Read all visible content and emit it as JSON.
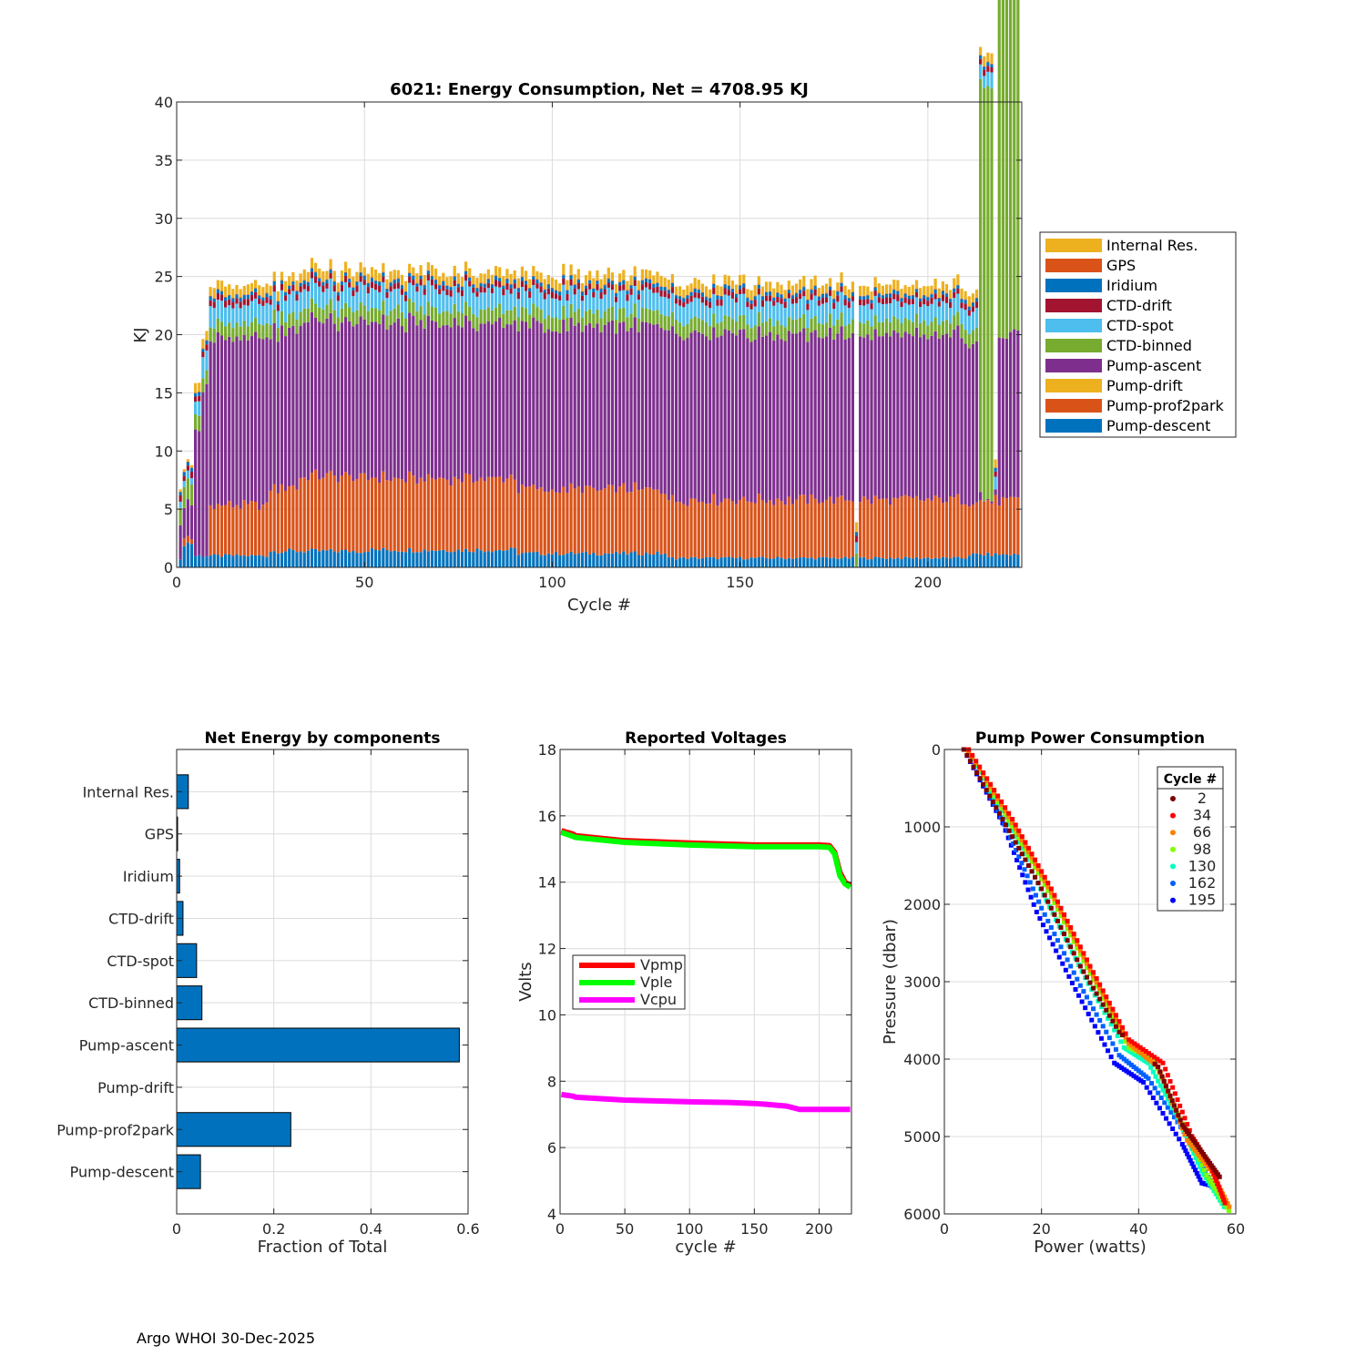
{
  "footer": "Argo WHOI 30-Dec-2025",
  "chart_data": [
    {
      "id": "energy",
      "type": "bar",
      "stacked": true,
      "title": "6021: Energy Consumption,  Net = 4708.95 KJ",
      "xlabel": "Cycle #",
      "ylabel": "KJ",
      "xlim": [
        0,
        225
      ],
      "ylim": [
        0,
        40
      ],
      "xticks": [
        0,
        50,
        100,
        150,
        200
      ],
      "yticks": [
        0,
        5,
        10,
        15,
        20,
        25,
        30,
        35,
        40
      ],
      "grid": true,
      "legend_position": "outside-right",
      "legend": [
        "Internal Res.",
        "GPS",
        "Iridium",
        "CTD-drift",
        "CTD-spot",
        "CTD-binned",
        "Pump-ascent",
        "Pump-drift",
        "Pump-prof2park",
        "Pump-descent"
      ],
      "colors": {
        "Internal Res.": "#EDB120",
        "GPS": "#D95319",
        "Iridium": "#0072BD",
        "CTD-drift": "#A2142F",
        "CTD-spot": "#4DBEEE",
        "CTD-binned": "#77AC30",
        "Pump-ascent": "#7E2F8E",
        "Pump-drift": "#EDB120",
        "Pump-prof2park": "#D95319",
        "Pump-descent": "#0072BD"
      },
      "series_note": "Per-cycle approximate values (KJ) read off the figure; x = cycle number 1..224",
      "segments": {
        "pump_descent": {
          "start": 1,
          "values_by_range": [
            [
              1,
              1,
              0.6
            ],
            [
              2,
              4,
              2.1
            ],
            [
              5,
              24,
              1.0
            ],
            [
              25,
              50,
              1.4
            ],
            [
              51,
              90,
              1.5
            ],
            [
              91,
              130,
              1.2
            ],
            [
              131,
              180,
              0.8
            ],
            [
              181,
              181,
              0.0
            ],
            [
              182,
              210,
              0.8
            ],
            [
              211,
              224,
              1.1
            ]
          ]
        },
        "pump_prof2park": {
          "values_by_range": [
            [
              1,
              1,
              0.0
            ],
            [
              2,
              4,
              0.6
            ],
            [
              5,
              8,
              0.0
            ],
            [
              9,
              24,
              4.3
            ],
            [
              25,
              32,
              5.5
            ],
            [
              33,
              50,
              6.4
            ],
            [
              51,
              90,
              6.2
            ],
            [
              91,
              130,
              5.5
            ],
            [
              131,
              180,
              5.0
            ],
            [
              181,
              181,
              0.0
            ],
            [
              182,
              210,
              5.0
            ],
            [
              211,
              224,
              4.6
            ]
          ]
        },
        "pump_ascent": {
          "values_by_range": [
            [
              1,
              1,
              3.0
            ],
            [
              2,
              4,
              2.8
            ],
            [
              5,
              6,
              10.5
            ],
            [
              7,
              24,
              14.5
            ],
            [
              25,
              50,
              13.4
            ],
            [
              51,
              90,
              13.3
            ],
            [
              91,
              130,
              14.0
            ],
            [
              131,
              180,
              14.2
            ],
            [
              181,
              181,
              0.0
            ],
            [
              182,
              210,
              14.1
            ],
            [
              211,
              213,
              14.0
            ],
            [
              214,
              217,
              0.4
            ],
            [
              218,
              218,
              0.3
            ],
            [
              219,
              224,
              14.0
            ]
          ]
        },
        "pump_drift": {
          "values_by_range": [
            [
              1,
              224,
              0.0
            ]
          ]
        },
        "ctd_binned": {
          "values_by_range": [
            [
              1,
              1,
              1.5
            ],
            [
              2,
              4,
              1.8
            ],
            [
              5,
              6,
              1.3
            ],
            [
              7,
              213,
              1.2
            ],
            [
              214,
              217,
              35.5
            ],
            [
              218,
              218,
              0.0
            ],
            [
              219,
              224,
              35.0
            ]
          ]
        },
        "ctd_spot": {
          "values_by_range": [
            [
              1,
              4,
              0.6
            ],
            [
              5,
              6,
              1.2
            ],
            [
              7,
              180,
              1.6
            ],
            [
              181,
              181,
              1.0
            ],
            [
              182,
              213,
              1.5
            ],
            [
              214,
              218,
              1.2
            ],
            [
              219,
              224,
              1.2
            ]
          ]
        },
        "ctd_drift": {
          "values_by_range": [
            [
              1,
              224,
              0.5
            ]
          ]
        },
        "iridium": {
          "values_by_range": [
            [
              1,
              224,
              0.3
            ]
          ]
        },
        "gps": {
          "values_by_range": [
            [
              1,
              224,
              0.05
            ]
          ]
        },
        "internal_res": {
          "values_by_range": [
            [
              1,
              4,
              0.2
            ],
            [
              5,
              224,
              0.8
            ]
          ]
        }
      }
    },
    {
      "id": "net-energy",
      "type": "bar",
      "orientation": "horizontal",
      "title": "Net Energy by components",
      "xlabel": "Fraction of Total",
      "ylabel": "",
      "xlim": [
        0,
        0.6
      ],
      "xticks": [
        0,
        0.2,
        0.4,
        0.6
      ],
      "xtick_labels": [
        "0",
        "0.2",
        "0.4",
        "0.6"
      ],
      "grid": true,
      "color": "#0072BD",
      "categories": [
        "Internal Res.",
        "GPS",
        "Iridium",
        "CTD-drift",
        "CTD-spot",
        "CTD-binned",
        "Pump-ascent",
        "Pump-drift",
        "Pump-prof2park",
        "Pump-descent"
      ],
      "values": [
        0.024,
        0.001,
        0.006,
        0.013,
        0.041,
        0.052,
        0.582,
        0.0,
        0.235,
        0.049
      ]
    },
    {
      "id": "voltages",
      "type": "line",
      "title": "Reported Voltages",
      "xlabel": "cycle #",
      "ylabel": "Volts",
      "xlim": [
        0,
        225
      ],
      "ylim": [
        4,
        18
      ],
      "xticks": [
        0,
        50,
        100,
        150,
        200
      ],
      "yticks": [
        4,
        6,
        8,
        10,
        12,
        14,
        16,
        18
      ],
      "grid": true,
      "legend_position": "middle-left",
      "series": [
        {
          "name": "Vpmp",
          "color": "#FF0000",
          "x": [
            1,
            10,
            12,
            50,
            100,
            150,
            200,
            208,
            212,
            216,
            220,
            224
          ],
          "y": [
            15.55,
            15.45,
            15.4,
            15.25,
            15.18,
            15.12,
            15.12,
            15.1,
            14.9,
            14.3,
            14.0,
            13.9
          ]
        },
        {
          "name": "Vple",
          "color": "#00FF00",
          "x": [
            1,
            10,
            12,
            50,
            100,
            150,
            200,
            208,
            212,
            216,
            220,
            224
          ],
          "y": [
            15.5,
            15.38,
            15.35,
            15.2,
            15.12,
            15.07,
            15.07,
            15.05,
            14.85,
            14.2,
            13.95,
            13.85
          ]
        },
        {
          "name": "Vcpu",
          "color": "#FF00FF",
          "x": [
            1,
            10,
            12,
            50,
            100,
            130,
            150,
            160,
            175,
            185,
            200,
            224
          ],
          "y": [
            7.6,
            7.55,
            7.52,
            7.43,
            7.38,
            7.36,
            7.33,
            7.3,
            7.25,
            7.15,
            7.15,
            7.15
          ]
        }
      ]
    },
    {
      "id": "pump-power",
      "type": "scatter",
      "title": "Pump Power Consumption",
      "xlabel": "Power (watts)",
      "ylabel": "Pressure (dbar)",
      "xlim": [
        0,
        60
      ],
      "ylim": [
        6000,
        0
      ],
      "y_reversed": true,
      "xticks": [
        0,
        20,
        40,
        60
      ],
      "yticks": [
        0,
        1000,
        2000,
        3000,
        4000,
        5000,
        6000
      ],
      "grid": true,
      "legend_title": "Cycle #",
      "legend_position": "top-right",
      "series": [
        {
          "name": "2",
          "color": "#7F0000",
          "x": [
            4,
            12,
            20,
            28,
            36,
            44,
            49,
            53,
            57
          ],
          "y": [
            0,
            900,
            1800,
            2800,
            3650,
            4100,
            4850,
            5200,
            5550
          ]
        },
        {
          "name": "34",
          "color": "#FF0000",
          "x": [
            5,
            14,
            22,
            30,
            38,
            45,
            51,
            55,
            58
          ],
          "y": [
            0,
            900,
            1800,
            2800,
            3750,
            4050,
            5000,
            5400,
            5900
          ]
        },
        {
          "name": "66",
          "color": "#FF8000",
          "x": [
            5,
            14,
            22,
            30,
            38,
            44,
            50,
            55,
            59
          ],
          "y": [
            20,
            950,
            1850,
            2850,
            3800,
            4100,
            5050,
            5450,
            5950
          ]
        },
        {
          "name": "98",
          "color": "#80FF00",
          "x": [
            5,
            14,
            22,
            30,
            38,
            43,
            48,
            54,
            59
          ],
          "y": [
            30,
            1000,
            1900,
            2900,
            3850,
            4000,
            4700,
            5500,
            6000
          ]
        },
        {
          "name": "130",
          "color": "#00FFC0",
          "x": [
            5,
            14,
            21,
            29,
            37,
            42,
            48,
            53,
            58
          ],
          "y": [
            40,
            1050,
            1950,
            2950,
            3850,
            4050,
            4750,
            5450,
            5950
          ]
        },
        {
          "name": "162",
          "color": "#0060FF",
          "x": [
            5,
            13,
            20,
            28,
            36,
            42,
            50,
            54,
            57
          ],
          "y": [
            30,
            1050,
            2050,
            3050,
            3950,
            4250,
            5000,
            5500,
            5800
          ]
        },
        {
          "name": "195",
          "color": "#0000FF",
          "x": [
            4,
            12,
            19,
            27,
            35,
            41,
            49,
            53,
            56
          ],
          "y": [
            0,
            950,
            2100,
            3100,
            4050,
            4300,
            5100,
            5600,
            5650
          ]
        }
      ]
    }
  ]
}
